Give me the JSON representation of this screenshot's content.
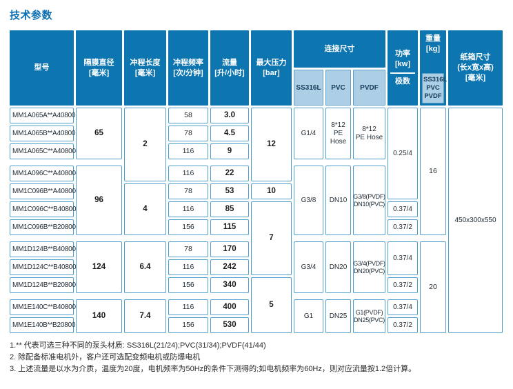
{
  "title": "技术参数",
  "colors": {
    "header_blue": "#0d75b0",
    "light_blue": "#adcfe6",
    "border_blue": "#4c9dca"
  },
  "header": {
    "model": "型号",
    "diaphragm": {
      "label": "隔膜直径",
      "unit": "[毫米]"
    },
    "stroke": {
      "label": "冲程长度",
      "unit": "[毫米]"
    },
    "frequency": {
      "label": "冲程频率",
      "unit": "[次/分钟]"
    },
    "flow": {
      "label": "流量",
      "unit": "[升/小时]"
    },
    "pressure": {
      "label": "最大压力",
      "unit": "[bar]"
    },
    "connection": {
      "label": "连接尺寸",
      "subs": [
        "SS316L",
        "PVC",
        "PVDF"
      ]
    },
    "power": {
      "label": "功率",
      "unit": "[kw]",
      "sub": "极数"
    },
    "weight": {
      "label": "重量",
      "unit": "[kg]",
      "materials": "SS316L\nPVC\nPVDF"
    },
    "carton": {
      "label": "纸箱尺寸",
      "dims": "(长x宽x高)",
      "unit": "[毫米]"
    }
  },
  "rows": [
    {
      "model": "MM1A065A**A40800",
      "freq": "58",
      "flow": "3.0"
    },
    {
      "model": "MM1A065B**A40800",
      "freq": "78",
      "flow": "4.5"
    },
    {
      "model": "MM1A065C**A40800",
      "freq": "116",
      "flow": "9"
    },
    {
      "model": "MM1A096C**A40800",
      "freq": "116",
      "flow": "22"
    },
    {
      "model": "MM1C096B**A40800",
      "freq": "78",
      "flow": "53"
    },
    {
      "model": "MM1C096C**B40800",
      "freq": "116",
      "flow": "85"
    },
    {
      "model": "MM1C096B**B20800",
      "freq": "156",
      "flow": "115"
    },
    {
      "model": "MM1D124B**B40800",
      "freq": "78",
      "flow": "170"
    },
    {
      "model": "MM1D124C**B40800",
      "freq": "116",
      "flow": "242"
    },
    {
      "model": "MM1D124B**B20800",
      "freq": "156",
      "flow": "340"
    },
    {
      "model": "MM1E140C**B40800",
      "freq": "116",
      "flow": "400"
    },
    {
      "model": "MM1E140B**B20800",
      "freq": "156",
      "flow": "530"
    }
  ],
  "diaphragm_groups": [
    "65",
    "96",
    "124",
    "140"
  ],
  "stroke_groups": [
    "2",
    "4",
    "6.4",
    "7.4"
  ],
  "pressure_groups": [
    "12",
    "10",
    "7",
    "5"
  ],
  "connection_groups": [
    {
      "ss316l": "G1/4",
      "pvc": "8*12\nPE\nHose",
      "pvdf": "8*12\nPE Hose"
    },
    {
      "ss316l": "G3/8",
      "pvc": "DN10",
      "pvdf": "G3/8(PVDF)\nDN10(PVC)"
    },
    {
      "ss316l": "G3/4",
      "pvc": "DN20",
      "pvdf": "G3/4(PVDF)\nDN20(PVC)"
    },
    {
      "ss316l": "G1",
      "pvc": "DN25",
      "pvdf": "G1(PVDF)\nDN25(PVC)"
    }
  ],
  "power_groups": [
    "0.25/4",
    "0.37/4",
    "0.37/2",
    "0.37/4",
    "0.37/2",
    "0.37/4",
    "0.37/2"
  ],
  "weight_groups": [
    "16",
    "20"
  ],
  "carton_size": "450x300x550",
  "notes": [
    "1.** 代表可选三种不同的泵头材质: SS316L(21/24);PVC(31/34);PVDF(41/44)",
    "2. 除配备标准电机外，客户还可选配变频电机或防爆电机",
    "3. 上述流量是以水为介质，温度为20度，电机频率为50Hz的条件下测得的;如电机频率为60Hz，则对应流量按1.2倍计算。"
  ]
}
